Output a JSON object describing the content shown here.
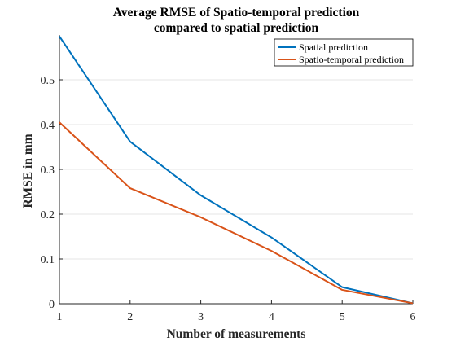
{
  "chart_data": {
    "type": "line",
    "title": "Average RMSE of Spatio-temporal prediction",
    "subtitle": "compared to spatial prediction",
    "xlabel": "Number of measurements",
    "ylabel": "RMSE in mm",
    "xlim": [
      1,
      6
    ],
    "ylim": [
      0,
      0.6
    ],
    "x_ticks": [
      1,
      2,
      3,
      4,
      5,
      6
    ],
    "y_ticks": [
      0,
      0.1,
      0.2,
      0.3,
      0.4,
      0.5
    ],
    "grid": "horizontal",
    "legend_position": "top-right",
    "x": [
      1,
      2,
      3,
      4,
      5,
      6
    ],
    "series": [
      {
        "name": "Spatial prediction",
        "color": "#0072BD",
        "values": [
          0.597,
          0.362,
          0.242,
          0.148,
          0.037,
          0.001
        ]
      },
      {
        "name": "Spatio-temporal prediction",
        "color": "#D95319",
        "values": [
          0.405,
          0.258,
          0.193,
          0.118,
          0.031,
          0.001
        ]
      }
    ]
  }
}
